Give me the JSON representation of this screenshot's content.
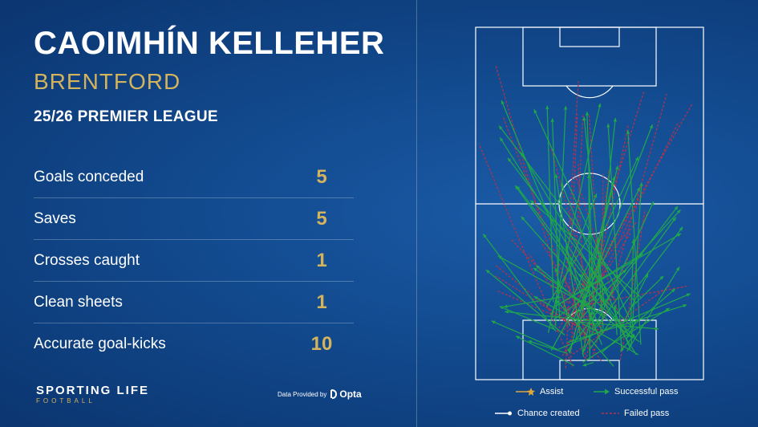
{
  "header": {
    "player_name": "CAOIMHÍN KELLEHER",
    "club": "BRENTFORD",
    "season": "25/26 PREMIER LEAGUE"
  },
  "stats": [
    {
      "label": "Goals conceded",
      "value": "5"
    },
    {
      "label": "Saves",
      "value": "5"
    },
    {
      "label": "Crosses caught",
      "value": "1"
    },
    {
      "label": "Clean sheets",
      "value": "1"
    },
    {
      "label": "Accurate goal-kicks",
      "value": "10"
    }
  ],
  "footer": {
    "brand": "SPORTING LIFE",
    "brand_sub": "FOOTBALL",
    "credit_text": "Data Provided by",
    "credit_logo": "Opta"
  },
  "legend": {
    "assist": "Assist",
    "successful_pass": "Successful pass",
    "chance_created": "Chance created",
    "failed_pass": "Failed pass"
  },
  "colors": {
    "gold": "#d4b35d",
    "successful_pass": "#1fa84a",
    "failed_pass": "#b8324a",
    "assist": "#e0a83a",
    "chance_created": "#ffffff"
  }
}
